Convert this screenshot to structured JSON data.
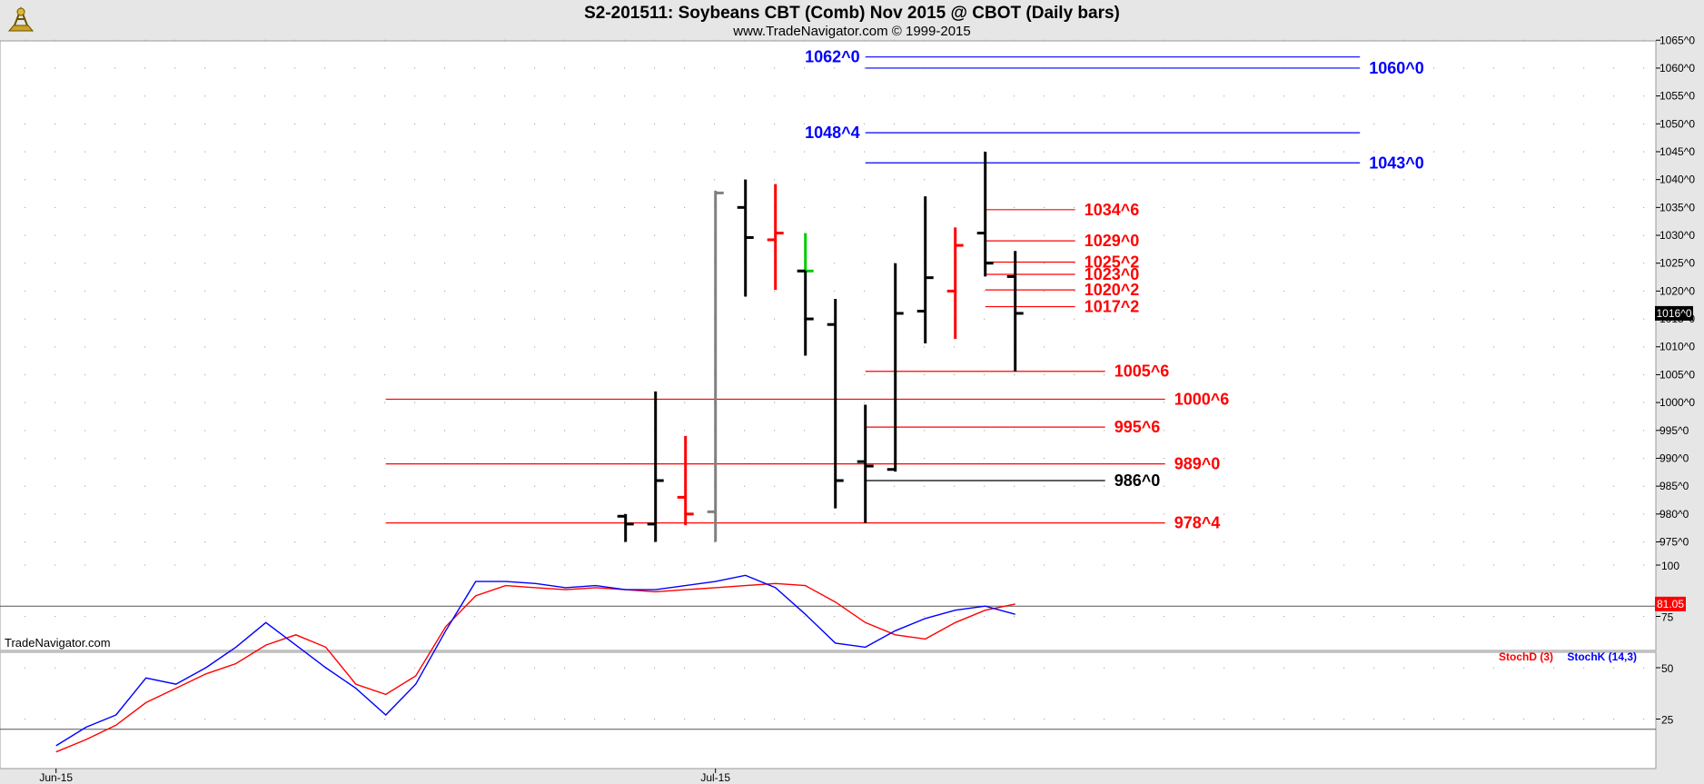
{
  "header": {
    "title": "S2-201511:  Soybeans CBT (Comb) Nov 2015 @ CBOT  (Daily bars)",
    "subtitle": "www.TradeNavigator.com © 1999-2015"
  },
  "brand": {
    "watermark": "TradeNavigator.com",
    "logo": "trade-navigator-logo"
  },
  "colors": {
    "background": "#ffffff",
    "panel": "#e6e6e6",
    "bar_default": "#000000",
    "bar_red": "#ff0000",
    "bar_gray": "#808080",
    "bar_green": "#00cc00",
    "level_red": "#ff0000",
    "level_blue": "#0000ff",
    "level_black": "#000000",
    "stoch_d": "#ff0000",
    "stoch_k": "#0000ff"
  },
  "chart_data": [
    {
      "type": "ohlc",
      "ylim": [
        975,
        1065
      ],
      "ytick_values": [
        975,
        980,
        985,
        990,
        995,
        1000,
        1005,
        1010,
        1015,
        1020,
        1025,
        1030,
        1035,
        1040,
        1045,
        1050,
        1055,
        1060,
        1065
      ],
      "ytick_labels": [
        "975^0",
        "980^0",
        "985^0",
        "990^0",
        "995^0",
        "1000^0",
        "1005^0",
        "1010^0",
        "1015^0",
        "1020^0",
        "1025^0",
        "1030^0",
        "1035^0",
        "1040^0",
        "1045^0",
        "1050^0",
        "1055^0",
        "1060^0",
        "1065^0"
      ],
      "x_labels": [
        {
          "index": 0,
          "label": "Jun-15"
        },
        {
          "index": 22,
          "label": "Jul-15"
        }
      ],
      "bars": [
        {
          "i": 19,
          "open": 979.6,
          "high": 980.0,
          "low": 974.6,
          "close": 978.2,
          "color": "bar_default"
        },
        {
          "i": 20,
          "open": 978.2,
          "high": 1002.0,
          "low": 974.6,
          "close": 986.0,
          "color": "bar_default"
        },
        {
          "i": 21,
          "open": 983.0,
          "high": 994.0,
          "low": 978.0,
          "close": 980.0,
          "color": "bar_red"
        },
        {
          "i": 22,
          "open": 980.4,
          "high": 1038.0,
          "low": 974.6,
          "close": 1037.6,
          "color": "bar_gray"
        },
        {
          "i": 23,
          "open": 1035.0,
          "high": 1040.0,
          "low": 1019.0,
          "close": 1029.6,
          "color": "bar_default"
        },
        {
          "i": 24,
          "open": 1029.2,
          "high": 1039.2,
          "low": 1020.2,
          "close": 1030.4,
          "color": "bar_red"
        },
        {
          "i": 25,
          "open": 1023.6,
          "high": 1030.4,
          "low": 1023.6,
          "close": 1023.6,
          "color": "bar_green"
        },
        {
          "i": 25,
          "open": 1023.6,
          "high": 1023.6,
          "low": 1008.4,
          "close": 1015.0,
          "color": "bar_default"
        },
        {
          "i": 26,
          "open": 1014.0,
          "high": 1018.6,
          "low": 981.0,
          "close": 986.0,
          "color": "bar_default"
        },
        {
          "i": 27,
          "open": 989.4,
          "high": 999.6,
          "low": 978.4,
          "close": 988.6,
          "color": "bar_default"
        },
        {
          "i": 28,
          "open": 988.0,
          "high": 1025.0,
          "low": 987.6,
          "close": 1016.0,
          "color": "bar_default"
        },
        {
          "i": 29,
          "open": 1016.4,
          "high": 1037.0,
          "low": 1010.6,
          "close": 1022.4,
          "color": "bar_default"
        },
        {
          "i": 30,
          "open": 1020.0,
          "high": 1031.4,
          "low": 1011.4,
          "close": 1028.2,
          "color": "bar_red"
        },
        {
          "i": 31,
          "open": 1030.4,
          "high": 1045.0,
          "low": 1022.6,
          "close": 1025.0,
          "color": "bar_default"
        },
        {
          "i": 32,
          "open": 1022.6,
          "high": 1027.2,
          "low": 1005.6,
          "close": 1016.0,
          "color": "bar_default"
        }
      ],
      "levels": [
        {
          "value": 1062.0,
          "label": "1062^0",
          "color": "level_blue",
          "start_index": 27.0,
          "end_index": 43.5,
          "label_side": "left"
        },
        {
          "value": 1060.0,
          "label": "1060^0",
          "color": "level_blue",
          "start_index": 27.0,
          "end_index": 43.5,
          "label_side": "right"
        },
        {
          "value": 1048.4,
          "label": "1048^4",
          "color": "level_blue",
          "start_index": 27.0,
          "end_index": 43.5,
          "label_side": "left"
        },
        {
          "value": 1043.0,
          "label": "1043^0",
          "color": "level_blue",
          "start_index": 27.0,
          "end_index": 43.5,
          "label_side": "right"
        },
        {
          "value": 1034.6,
          "label": "1034^6",
          "color": "level_red",
          "start_index": 31.0,
          "end_index": 34.0,
          "label_side": "right"
        },
        {
          "value": 1029.0,
          "label": "1029^0",
          "color": "level_red",
          "start_index": 31.0,
          "end_index": 34.0,
          "label_side": "right"
        },
        {
          "value": 1025.2,
          "label": "1025^2",
          "color": "level_red",
          "start_index": 31.0,
          "end_index": 34.0,
          "label_side": "right"
        },
        {
          "value": 1023.0,
          "label": "1023^0",
          "color": "level_red",
          "start_index": 31.0,
          "end_index": 34.0,
          "label_side": "right"
        },
        {
          "value": 1020.2,
          "label": "1020^2",
          "color": "level_red",
          "start_index": 31.0,
          "end_index": 34.0,
          "label_side": "right"
        },
        {
          "value": 1017.2,
          "label": "1017^2",
          "color": "level_red",
          "start_index": 31.0,
          "end_index": 34.0,
          "label_side": "right"
        },
        {
          "value": 1005.6,
          "label": "1005^6",
          "color": "level_red",
          "start_index": 27.0,
          "end_index": 35.0,
          "label_side": "right"
        },
        {
          "value": 1000.6,
          "label": "1000^6",
          "color": "level_red",
          "start_index": 11.0,
          "end_index": 37.0,
          "label_side": "right"
        },
        {
          "value": 995.6,
          "label": "995^6",
          "color": "level_red",
          "start_index": 27.0,
          "end_index": 35.0,
          "label_side": "right"
        },
        {
          "value": 989.0,
          "label": "989^0",
          "color": "level_red",
          "start_index": 11.0,
          "end_index": 37.0,
          "label_side": "right"
        },
        {
          "value": 986.0,
          "label": "986^0",
          "color": "level_black",
          "start_index": 27.0,
          "end_index": 35.0,
          "label_side": "right"
        },
        {
          "value": 978.4,
          "label": "978^4",
          "color": "level_red",
          "start_index": 11.0,
          "end_index": 37.0,
          "label_side": "right"
        }
      ],
      "last_price": {
        "value": 1016.0,
        "label": "1016^0"
      }
    },
    {
      "type": "line",
      "ylim": [
        15,
        105
      ],
      "ytick_values": [
        25,
        50,
        75,
        100
      ],
      "ytick_labels": [
        "25",
        "50",
        "75",
        "100"
      ],
      "reference_lines": [
        80,
        20
      ],
      "x": [
        0,
        1,
        2,
        3,
        4,
        5,
        6,
        7,
        8,
        9,
        10,
        11,
        12,
        13,
        14,
        15,
        16,
        17,
        18,
        19,
        20,
        21,
        22,
        23,
        24,
        25,
        26,
        27,
        28,
        29,
        30,
        31,
        32
      ],
      "series": [
        {
          "name": "StochD (3)",
          "color": "stoch_d",
          "values": [
            9,
            15,
            22,
            33,
            40,
            47,
            52,
            61,
            66,
            60,
            42,
            37,
            46,
            70,
            85,
            90,
            89,
            88,
            89,
            88,
            87,
            88,
            89,
            90,
            91,
            90,
            82,
            72,
            66,
            64,
            72,
            78,
            81
          ]
        },
        {
          "name": "StochK (14,3)",
          "color": "stoch_k",
          "values": [
            12,
            21,
            27,
            45,
            42,
            50,
            60,
            72,
            61,
            50,
            40,
            27,
            42,
            68,
            92,
            92,
            91,
            89,
            90,
            88,
            88,
            90,
            92,
            95,
            89,
            76,
            62,
            60,
            68,
            74,
            78,
            80,
            76
          ]
        }
      ],
      "last_value": {
        "value": 81.05,
        "label": "81.05"
      }
    }
  ]
}
